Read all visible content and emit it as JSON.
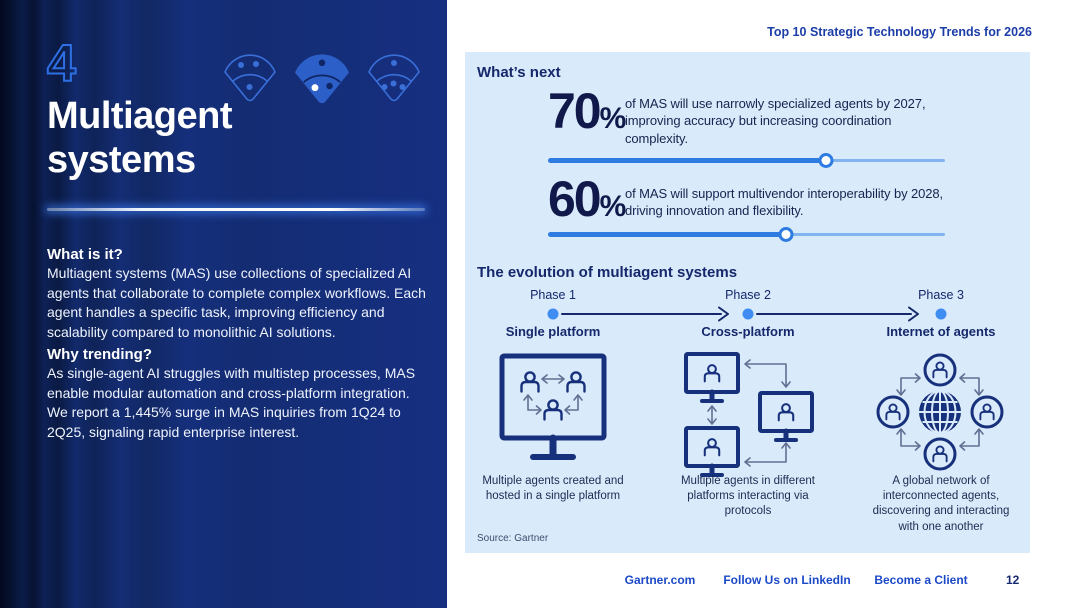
{
  "page": {
    "eyebrow": "Top 10 Strategic Technology Trends for 2026",
    "source_note": "Source: Gartner"
  },
  "left_panel": {
    "trend_number": "4",
    "title_line1": "Multiagent",
    "title_line2": "systems",
    "what_is_it_heading": "What is it?",
    "what_is_it_body": "Multiagent systems (MAS) use collections of specialized AI agents that collaborate to complete complex workflows. Each agent handles a specific task, improving efficiency and scalability compared to monolithic AI solutions.",
    "why_trending_heading": "Why trending?",
    "why_trending_body": "As single-agent AI struggles with multistep processes, MAS enable modular automation and cross-platform integration. We report a 1,445% surge in MAS inquiries from 1Q24 to 2Q25, signaling rapid enterprise interest."
  },
  "whats_next": {
    "heading": "What’s next",
    "stats": [
      {
        "number": "70",
        "suffix": "%",
        "percent": 70,
        "description": "of MAS will use narrowly specialized agents by 2027, improving accuracy but increasing coordination complexity."
      },
      {
        "number": "60",
        "suffix": "%",
        "percent": 60,
        "description": "of MAS will support multivendor interoperability by 2028, driving innovation and flexibility."
      }
    ]
  },
  "evolution": {
    "heading": "The evolution of multiagent systems",
    "phases": [
      {
        "label": "Phase 1",
        "name": "Single platform",
        "caption": "Multiple agents created and hosted in a single platform"
      },
      {
        "label": "Phase 2",
        "name": "Cross-platform",
        "caption": "Multiple agents in different platforms interacting via protocols"
      },
      {
        "label": "Phase 3",
        "name": "Internet of agents",
        "caption": "A global network of interconnected agents, discovering and interacting with one another"
      }
    ]
  },
  "footer": {
    "links": [
      {
        "label": "Gartner.com"
      },
      {
        "label": "Follow Us on LinkedIn"
      },
      {
        "label": "Become a Client"
      }
    ],
    "page_number": "12"
  },
  "colors": {
    "accent_blue": "#2e7ce1",
    "navy_text": "#15286b",
    "diagram_stroke": "#17307c",
    "panel_bg": "#d9eafa",
    "link_blue": "#1b49c8"
  }
}
